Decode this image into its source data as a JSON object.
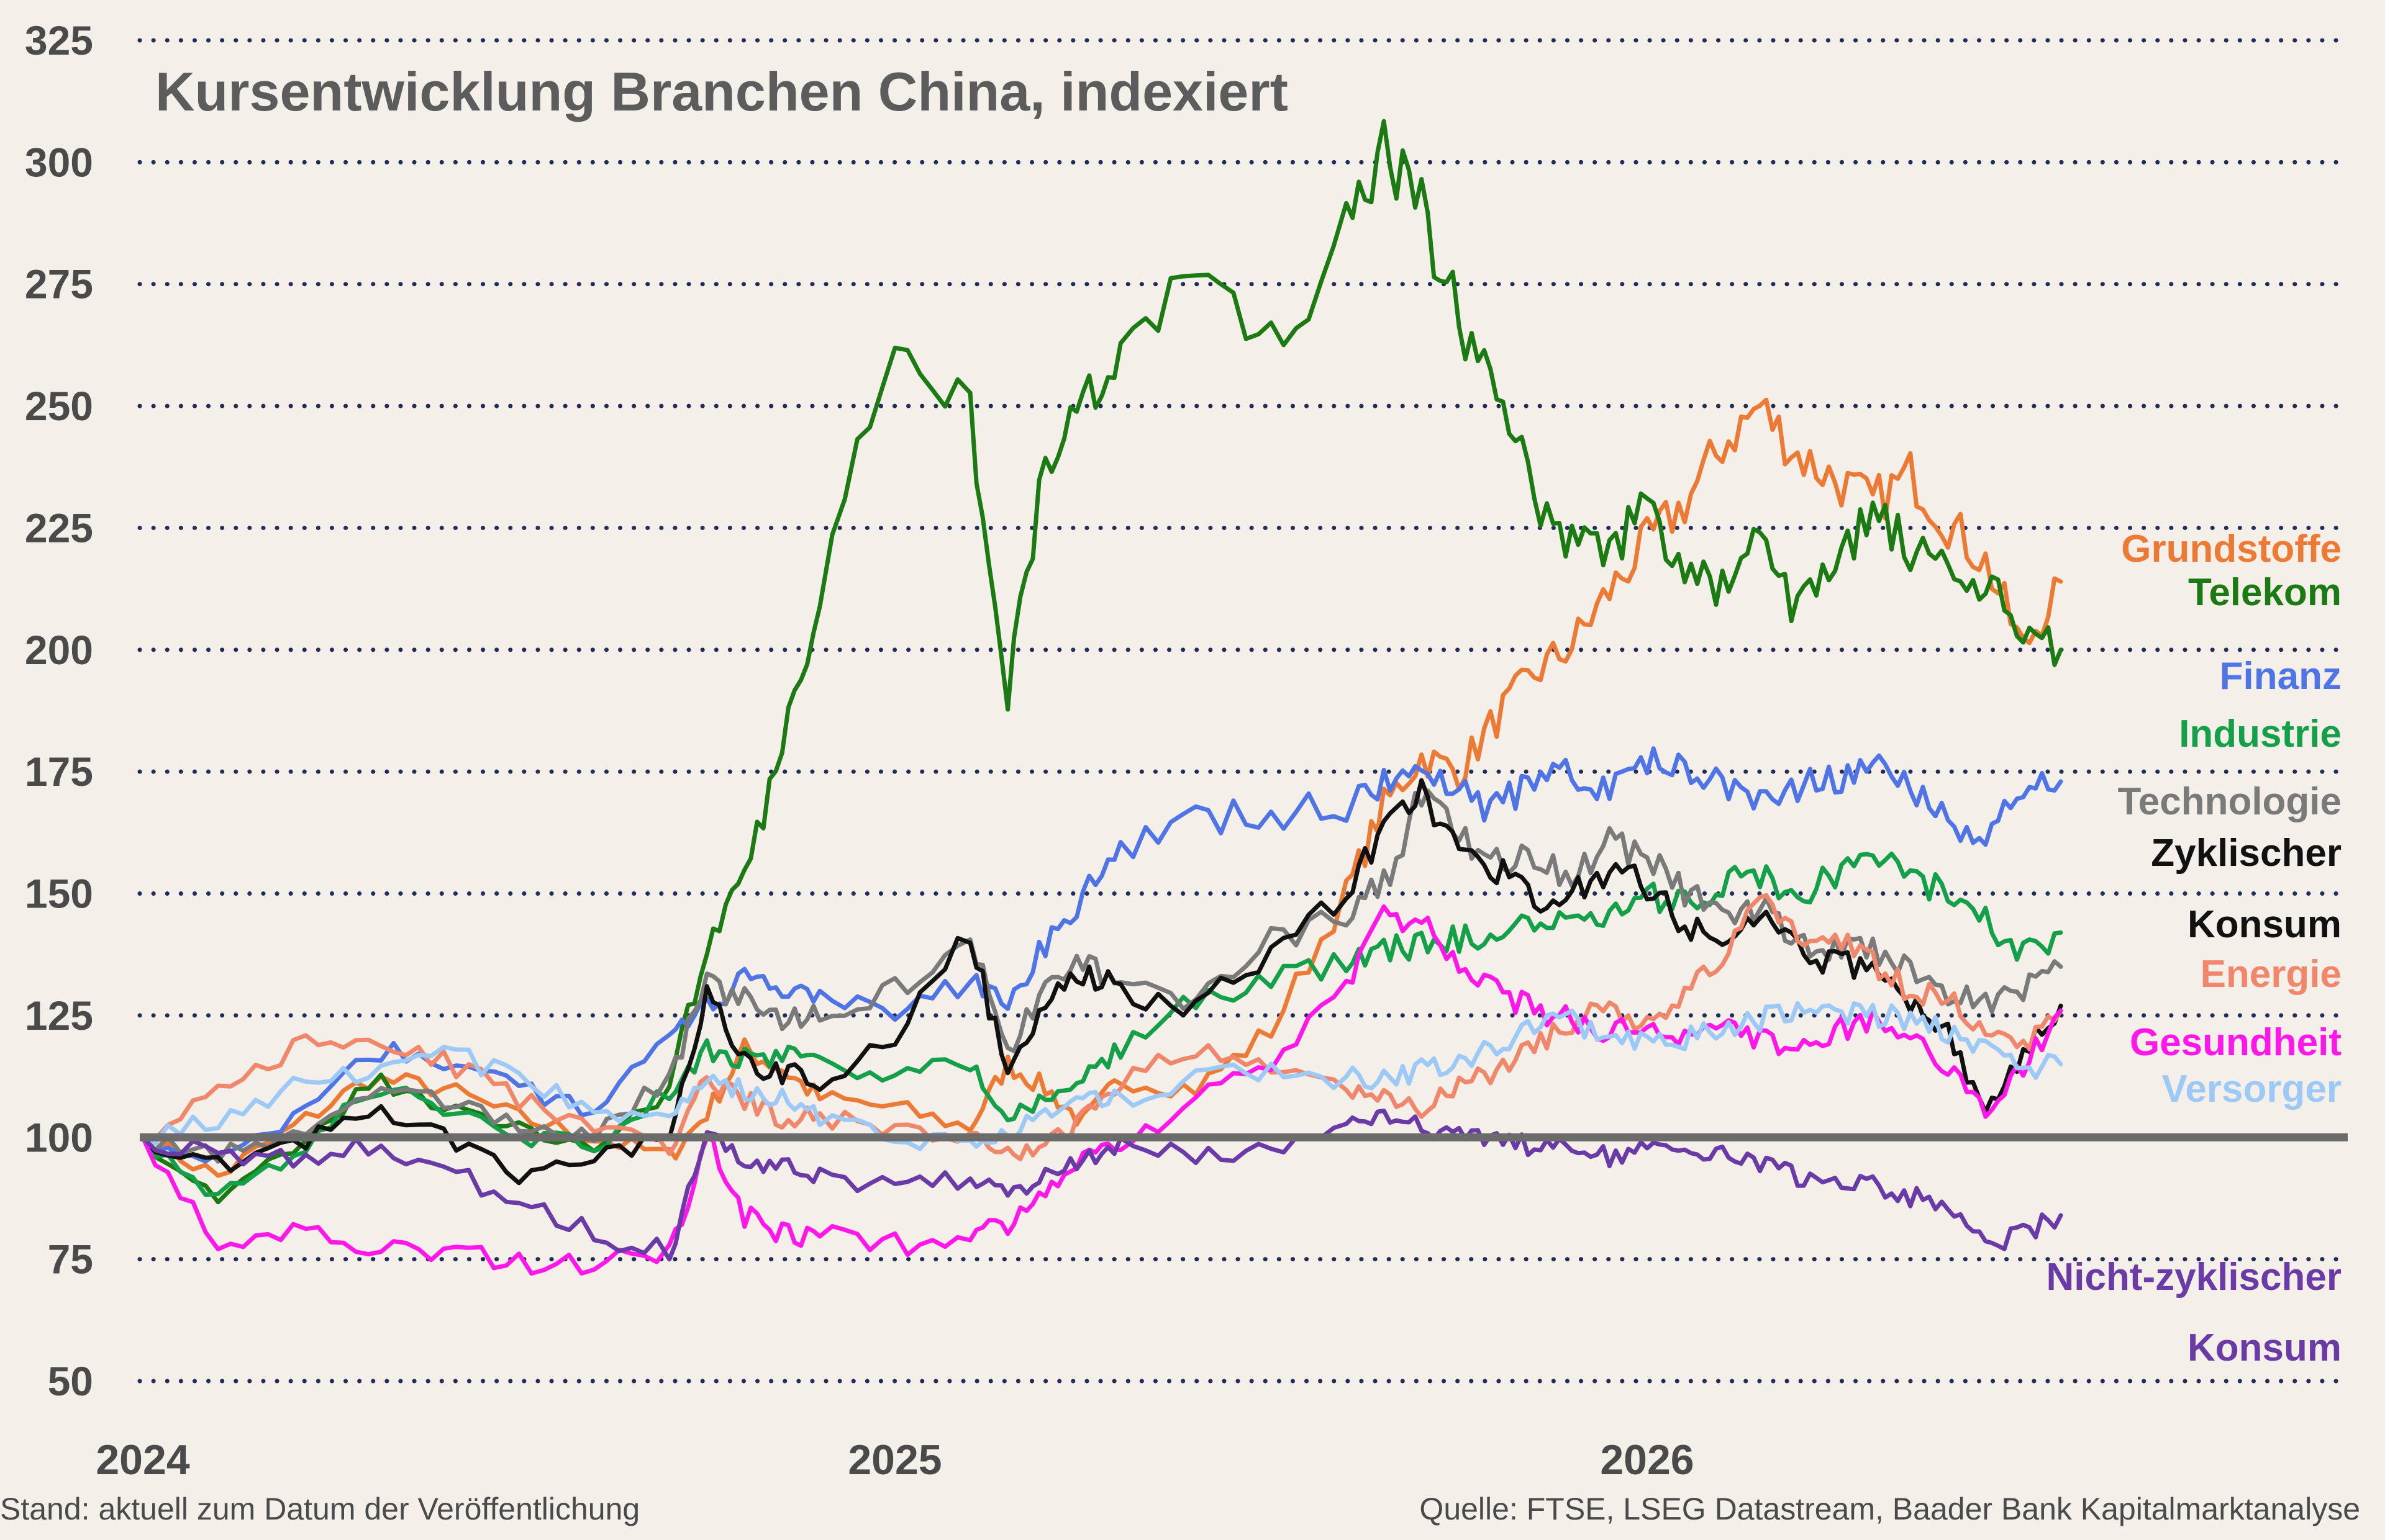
{
  "chart_data": {
    "type": "line",
    "title": "Kursentwicklung Branchen China, indexiert",
    "xlabel": "",
    "ylabel": "",
    "ylim": [
      50,
      325
    ],
    "yticks": [
      325,
      300,
      275,
      250,
      225,
      200,
      175,
      150,
      125,
      100,
      75,
      50
    ],
    "xticks": [
      "2024",
      "2025",
      "2026"
    ],
    "x_range": [
      2024.0,
      2026.55
    ],
    "grid": "horizontal-dotted",
    "legend": "right, inline labels at line ends",
    "x": [
      2024.0,
      2024.1,
      2024.2,
      2024.3,
      2024.4,
      2024.5,
      2024.6,
      2024.7,
      2024.75,
      2024.8,
      2024.85,
      2024.9,
      2025.0,
      2025.1,
      2025.15,
      2025.2,
      2025.25,
      2025.3,
      2025.4,
      2025.5,
      2025.6,
      2025.65,
      2025.7,
      2025.75,
      2025.8,
      2025.85,
      2025.9,
      2025.95,
      2026.0,
      2026.05,
      2026.1,
      2026.15,
      2026.2,
      2026.25,
      2026.3,
      2026.35,
      2026.4,
      2026.45,
      2026.5,
      2026.55
    ],
    "series": [
      {
        "name": "Grundstoffe",
        "color": "#ec7a34",
        "values": [
          100,
          92,
          102,
          112,
          110,
          104,
          100,
          96,
          105,
          118,
          114,
          108,
          106,
          102,
          115,
          110,
          103,
          112,
          110,
          122,
          150,
          168,
          178,
          175,
          186,
          195,
          201,
          212,
          222,
          230,
          242,
          250,
          240,
          235,
          230,
          236,
          226,
          218,
          200,
          214
        ]
      },
      {
        "name": "Telekom",
        "color": "#1c7a12",
        "values": [
          100,
          88,
          96,
          112,
          106,
          102,
          98,
          110,
          140,
          152,
          180,
          212,
          268,
          248,
          192,
          238,
          250,
          262,
          276,
          262,
          285,
          302,
          290,
          268,
          252,
          232,
          222,
          220,
          230,
          215,
          213,
          222,
          208,
          218,
          228,
          220,
          215,
          212,
          205,
          200
        ]
      },
      {
        "name": "Finanz",
        "color": "#4f74e6",
        "values": [
          100,
          95,
          104,
          118,
          115,
          110,
          106,
          122,
          126,
          132,
          130,
          128,
          125,
          132,
          128,
          140,
          150,
          158,
          165,
          166,
          168,
          172,
          176,
          170,
          168,
          172,
          175,
          172,
          177,
          176,
          174,
          168,
          172,
          173,
          175,
          172,
          165,
          162,
          170,
          173
        ]
      },
      {
        "name": "Industrie",
        "color": "#14a048",
        "values": [
          100,
          88,
          95,
          110,
          106,
          100,
          98,
          110,
          118,
          116,
          117,
          116,
          112,
          116,
          104,
          108,
          112,
          118,
          128,
          132,
          136,
          138,
          140,
          141,
          142,
          143,
          144,
          146,
          149,
          148,
          152,
          154,
          150,
          154,
          156,
          154,
          150,
          144,
          138,
          142
        ]
      },
      {
        "name": "Technologie",
        "color": "#7a7a7a",
        "values": [
          100,
          96,
          100,
          110,
          108,
          102,
          100,
          112,
          132,
          128,
          124,
          125,
          130,
          140,
          118,
          130,
          136,
          132,
          128,
          140,
          145,
          152,
          170,
          162,
          158,
          156,
          154,
          160,
          158,
          150,
          145,
          148,
          140,
          138,
          139,
          134,
          130,
          128,
          130,
          135
        ]
      },
      {
        "name": "Zyklischer Konsum",
        "color": "#111111",
        "values": [
          100,
          94,
          98,
          106,
          100,
          92,
          96,
          100,
          130,
          115,
          113,
          112,
          120,
          142,
          112,
          128,
          134,
          130,
          126,
          138,
          150,
          162,
          172,
          158,
          155,
          148,
          150,
          155,
          152,
          144,
          140,
          145,
          138,
          136,
          134,
          128,
          122,
          105,
          118,
          127
        ]
      },
      {
        "name": "Energie",
        "color": "#f0876a",
        "values": [
          100,
          110,
          118,
          122,
          116,
          108,
          102,
          98,
          112,
          108,
          104,
          104,
          102,
          100,
          96,
          98,
          104,
          112,
          118,
          114,
          110,
          108,
          106,
          110,
          114,
          118,
          124,
          126,
          124,
          130,
          138,
          148,
          142,
          140,
          136,
          130,
          128,
          122,
          118,
          126
        ]
      },
      {
        "name": "Gesundheit",
        "color": "#ff16e8",
        "values": [
          100,
          78,
          80,
          78,
          76,
          74,
          74,
          76,
          100,
          84,
          80,
          80,
          78,
          80,
          82,
          90,
          96,
          98,
          108,
          116,
          132,
          145,
          144,
          135,
          130,
          126,
          124,
          122,
          124,
          120,
          122,
          120,
          118,
          122,
          124,
          120,
          114,
          106,
          114,
          126
        ]
      },
      {
        "name": "Versorger",
        "color": "#9cc9f6",
        "values": [
          100,
          104,
          110,
          114,
          118,
          112,
          106,
          104,
          112,
          110,
          108,
          104,
          100,
          98,
          101,
          106,
          108,
          108,
          112,
          114,
          112,
          112,
          114,
          116,
          118,
          122,
          124,
          120,
          119,
          120,
          122,
          124,
          126,
          126,
          125,
          124,
          122,
          118,
          114,
          115
        ]
      },
      {
        "name": "Nicht-zyklischer Konsum",
        "color": "#6a3aa6",
        "values": [
          100,
          96,
          96,
          98,
          94,
          86,
          80,
          76,
          102,
          96,
          94,
          92,
          90,
          92,
          88,
          92,
          96,
          98,
          96,
          98,
          102,
          104,
          102,
          100,
          100,
          98,
          98,
          96,
          98,
          98,
          96,
          94,
          92,
          92,
          90,
          88,
          84,
          78,
          80,
          84
        ]
      }
    ]
  },
  "labels": [
    {
      "lines": [
        "Grundstoffe"
      ],
      "color": "#ec7a34"
    },
    {
      "lines": [
        "Telekom"
      ],
      "color": "#1c7a12"
    },
    {
      "lines": [
        "Finanz"
      ],
      "color": "#4f74e6"
    },
    {
      "lines": [
        "Industrie"
      ],
      "color": "#14a048"
    },
    {
      "lines": [
        "Technologie"
      ],
      "color": "#7a7a7a"
    },
    {
      "lines": [
        "Zyklischer",
        "Konsum"
      ],
      "color": "#111111"
    },
    {
      "lines": [
        "Energie"
      ],
      "color": "#f0876a"
    },
    {
      "lines": [
        "Gesundheit"
      ],
      "color": "#ff16e8"
    },
    {
      "lines": [
        "Versorger"
      ],
      "color": "#9cc9f6"
    },
    {
      "lines": [
        "Nicht-zyklischer",
        "Konsum"
      ],
      "color": "#6a3aa6"
    }
  ],
  "footer": {
    "left": "Stand: aktuell zum Datum der Veröffentlichung",
    "right": "Quelle: FTSE, LSEG Datastream, Baader Bank Kapitalmarktanalyse"
  },
  "colors": {
    "background": "#f4efe9",
    "grid": "#1f2d5a",
    "baseline": "#6b6b6b"
  }
}
